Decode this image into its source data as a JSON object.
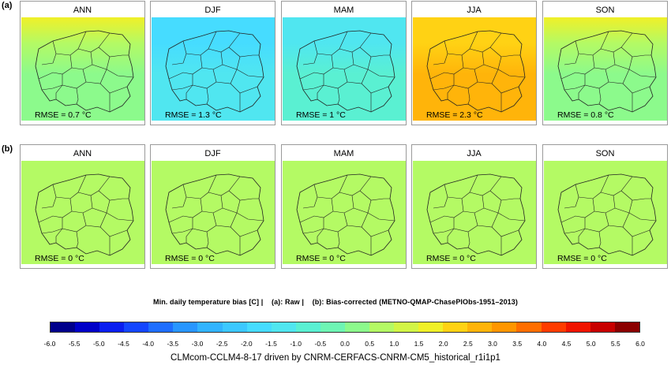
{
  "row_labels": [
    "(a)",
    "(b)"
  ],
  "rows": [
    {
      "panels": [
        {
          "season": "ANN",
          "rmse": "RMSE = 0.7 °C",
          "bias_level": 0.1,
          "north_bias": 1.8
        },
        {
          "season": "DJF",
          "rmse": "RMSE = 1.3 °C",
          "bias_level": -1.3,
          "north_bias": -1.8
        },
        {
          "season": "MAM",
          "rmse": "RMSE = 1 °C",
          "bias_level": -0.8,
          "north_bias": -1.5
        },
        {
          "season": "JJA",
          "rmse": "RMSE = 2.3 °C",
          "bias_level": 2.5,
          "north_bias": 2.2
        },
        {
          "season": "SON",
          "rmse": "RMSE = 0.8 °C",
          "bias_level": 0.3,
          "north_bias": 1.5
        }
      ]
    },
    {
      "panels": [
        {
          "season": "ANN",
          "rmse": "RMSE = 0 °C",
          "bias_level": 0.5,
          "north_bias": 0.5
        },
        {
          "season": "DJF",
          "rmse": "RMSE = 0 °C",
          "bias_level": 0.5,
          "north_bias": 0.5
        },
        {
          "season": "MAM",
          "rmse": "RMSE = 0 °C",
          "bias_level": 0.5,
          "north_bias": 0.5
        },
        {
          "season": "JJA",
          "rmse": "RMSE = 0 °C",
          "bias_level": 0.5,
          "north_bias": 0.5
        },
        {
          "season": "SON",
          "rmse": "RMSE = 0 °C",
          "bias_level": 0.5,
          "north_bias": 0.5
        }
      ]
    }
  ],
  "caption": {
    "part1": "Min. daily temperature bias [C] |",
    "part2": "(a): Raw |",
    "part3": "(b): Bias-corrected (METNO-QMAP-ChasePIObs-1951–2013)"
  },
  "colorbar": {
    "ticks": [
      "-6.0",
      "-5.5",
      "-5.0",
      "-4.5",
      "-4.0",
      "-3.5",
      "-3.0",
      "-2.5",
      "-2.0",
      "-1.5",
      "-1.0",
      "-0.5",
      "0.0",
      "0.5",
      "1.0",
      "1.5",
      "2.0",
      "2.5",
      "3.0",
      "3.5",
      "4.0",
      "4.5",
      "5.0",
      "5.5",
      "6.0"
    ],
    "colors": [
      "#00008b",
      "#0000c8",
      "#0a1ef0",
      "#1446ff",
      "#1e6eff",
      "#2896ff",
      "#32b4ff",
      "#3cc8ff",
      "#46dcff",
      "#50e6f0",
      "#5af0d2",
      "#6ef5b4",
      "#8cfa8c",
      "#b4fa64",
      "#d2f546",
      "#f0f028",
      "#ffd214",
      "#ffb40a",
      "#ff9600",
      "#ff6e00",
      "#ff3c00",
      "#f01400",
      "#c80000",
      "#8b0000"
    ]
  },
  "footer": "CLMcom-CCLM4-8-17 driven by CNRM-CERFACS-CNRM-CM5_historical_r1i1p1"
}
